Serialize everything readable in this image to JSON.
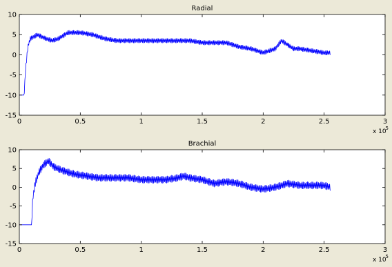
{
  "window": {
    "background": "#ece9d8",
    "axes_background": "#ffffff",
    "line_color": "#0000ff"
  },
  "chart_data": [
    {
      "type": "line",
      "title": "Radial",
      "xlabel": "",
      "ylabel": "",
      "xlim": [
        0,
        300000
      ],
      "ylim": [
        -15,
        10
      ],
      "x_ticks": [
        0,
        0.5,
        1,
        1.5,
        2,
        2.5,
        3
      ],
      "y_ticks": [
        -15,
        -10,
        -5,
        0,
        5,
        10
      ],
      "x_multiplier": "x 10",
      "x_exponent": "5",
      "grid": false,
      "series": [
        {
          "color": "#0000ff",
          "noise_amplitude": 0.6,
          "x": [
            0,
            4000,
            5000,
            7000,
            9000,
            12000,
            15000,
            18000,
            22000,
            27000,
            32000,
            40000,
            50000,
            60000,
            65000,
            70000,
            80000,
            90000,
            100000,
            110000,
            120000,
            130000,
            140000,
            150000,
            160000,
            170000,
            180000,
            190000,
            200000,
            205000,
            210000,
            215000,
            220000,
            225000,
            230000,
            240000,
            250000,
            255000
          ],
          "y": [
            -10,
            -10,
            -4,
            2,
            4,
            4.5,
            5,
            4.5,
            4,
            3.5,
            4,
            5.5,
            5.5,
            5,
            4.5,
            4,
            3.5,
            3.5,
            3.5,
            3.5,
            3.5,
            3.5,
            3.5,
            3,
            3,
            3,
            2,
            1.5,
            0.5,
            1,
            1.5,
            3.5,
            2.5,
            1.5,
            1.5,
            1,
            0.5,
            0.5
          ]
        }
      ]
    },
    {
      "type": "line",
      "title": "Brachial",
      "xlabel": "",
      "ylabel": "",
      "xlim": [
        0,
        300000
      ],
      "ylim": [
        -15,
        10
      ],
      "x_ticks": [
        0,
        0.5,
        1,
        1.5,
        2,
        2.5,
        3
      ],
      "y_ticks": [
        -15,
        -10,
        -5,
        0,
        5,
        10
      ],
      "x_multiplier": "x 10",
      "x_exponent": "5",
      "grid": false,
      "series": [
        {
          "color": "#0000ff",
          "noise_amplitude": 1.0,
          "x": [
            0,
            10000,
            11000,
            13000,
            16000,
            20000,
            24000,
            28000,
            35000,
            45000,
            55000,
            65000,
            80000,
            90000,
            100000,
            110000,
            120000,
            130000,
            135000,
            140000,
            150000,
            160000,
            170000,
            180000,
            190000,
            200000,
            210000,
            215000,
            220000,
            230000,
            240000,
            250000,
            255000
          ],
          "y": [
            -10,
            -10,
            -3,
            1,
            4,
            6,
            7,
            5.5,
            4.5,
            3.5,
            3,
            2.5,
            2.5,
            2.5,
            2,
            2,
            2,
            2.5,
            3,
            2.5,
            2,
            1,
            1.5,
            1,
            0,
            -0.5,
            0,
            0.5,
            1,
            0.5,
            0.5,
            0.5,
            0
          ]
        }
      ]
    }
  ]
}
